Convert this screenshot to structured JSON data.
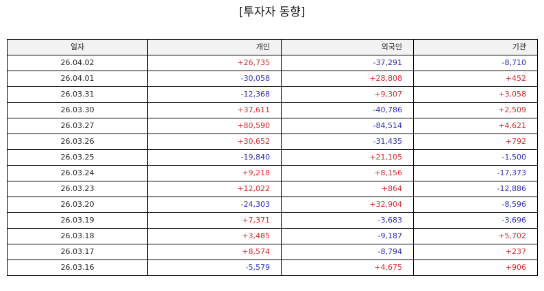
{
  "title": "[투자자 동향]",
  "columns": [
    "일자",
    "개인",
    "외국인",
    "기관"
  ],
  "colors": {
    "positive": "#d62728",
    "negative": "#2a2ab8"
  },
  "rows": [
    {
      "date": "26.04.02",
      "individual": "+26,735",
      "foreign": "-37,291",
      "institution": "-8,710"
    },
    {
      "date": "26.04.01",
      "individual": "-30,058",
      "foreign": "+28,808",
      "institution": "+452"
    },
    {
      "date": "26.03.31",
      "individual": "-12,368",
      "foreign": "+9,307",
      "institution": "+3,058"
    },
    {
      "date": "26.03.30",
      "individual": "+37,611",
      "foreign": "-40,786",
      "institution": "+2,509"
    },
    {
      "date": "26.03.27",
      "individual": "+80,590",
      "foreign": "-84,514",
      "institution": "+4,621"
    },
    {
      "date": "26.03.26",
      "individual": "+30,652",
      "foreign": "-31,435",
      "institution": "+792"
    },
    {
      "date": "26.03.25",
      "individual": "-19,840",
      "foreign": "+21,105",
      "institution": "-1,500"
    },
    {
      "date": "26.03.24",
      "individual": "+9,218",
      "foreign": "+8,156",
      "institution": "-17,373"
    },
    {
      "date": "26.03.23",
      "individual": "+12,022",
      "foreign": "+864",
      "institution": "-12,886"
    },
    {
      "date": "26.03.20",
      "individual": "-24,303",
      "foreign": "+32,904",
      "institution": "-8,596"
    },
    {
      "date": "26.03.19",
      "individual": "+7,371",
      "foreign": "-3,683",
      "institution": "-3,696"
    },
    {
      "date": "26.03.18",
      "individual": "+3,485",
      "foreign": "-9,187",
      "institution": "+5,702"
    },
    {
      "date": "26.03.17",
      "individual": "+8,574",
      "foreign": "-8,794",
      "institution": "+237"
    },
    {
      "date": "26.03.16",
      "individual": "-5,579",
      "foreign": "+4,675",
      "institution": "+906"
    }
  ]
}
